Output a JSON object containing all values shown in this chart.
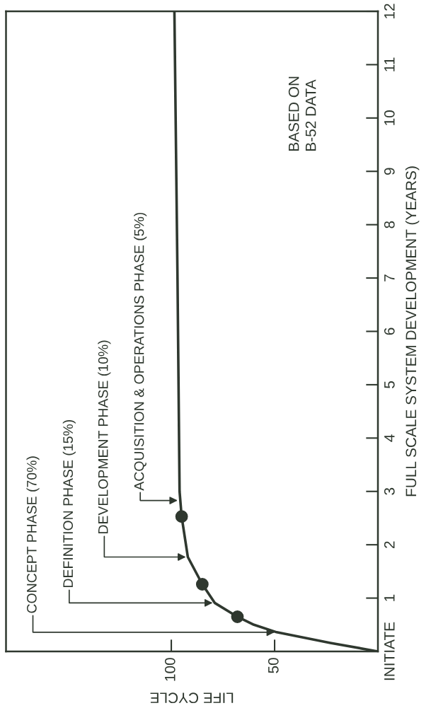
{
  "chart_data": {
    "type": "line",
    "xlabel": "LIFE CYCLE",
    "ylabel": "FULL SCALE SYSTEM DEVELOPMENT (YEARS)",
    "series": [
      {
        "color": "#2f382f",
        "x": [
          0,
          23,
          49,
          60,
          68,
          79,
          85,
          92,
          95,
          96,
          97,
          98.5
        ],
        "values": [
          0,
          0.16,
          0.36,
          0.5,
          0.65,
          0.91,
          1.26,
          1.77,
          2.53,
          3,
          7,
          12
        ]
      },
      {
        "type": "scatter",
        "color": "#2f382f",
        "marker": "circle",
        "x": [
          68,
          85,
          95
        ],
        "values": [
          0.65,
          1.26,
          2.53
        ]
      }
    ],
    "xlim": [
      180,
      0
    ],
    "ylim": [
      0,
      12
    ],
    "xticks": [
      50,
      100
    ],
    "yticks": [
      {
        "value": 0,
        "label": "INITIATE"
      },
      1,
      2,
      3,
      4,
      5,
      6,
      7,
      8,
      9,
      10,
      11,
      12
    ],
    "grid": false,
    "annotations": [
      {
        "text": "CONCEPT PHASE (70%)",
        "x": 49,
        "y": 0.36
      },
      {
        "text": "DEFINITION PHASE (15%)",
        "x": 79,
        "y": 0.91
      },
      {
        "text": "DEVELOPMENT PHASE (10%)",
        "x": 92,
        "y": 1.77
      },
      {
        "text": "ACQUISITION & OPERATIONS PHASE (5%)",
        "x": 96,
        "y": 2.83
      },
      "BASED ON\nB-52 DATA"
    ]
  }
}
